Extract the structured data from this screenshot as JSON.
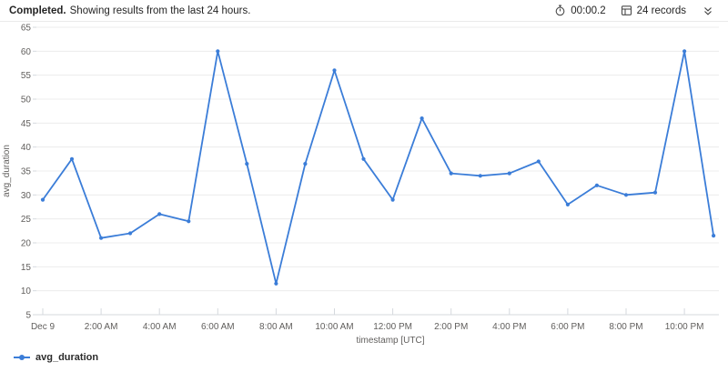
{
  "header": {
    "status": "Completed.",
    "message": "Showing results from the last 24 hours.",
    "elapsed": "00:00.2",
    "records": "24 records"
  },
  "legend": {
    "label": "avg_duration"
  },
  "colors": {
    "series_blue": "#3b7dd8",
    "grid": "#ececec",
    "axis": "#d5d9de",
    "tick_text": "#605e5c",
    "icon_gray": "#4a4a4a"
  },
  "chart_data": {
    "type": "line",
    "title": "",
    "xlabel": "timestamp [UTC]",
    "ylabel": "avg_duration",
    "ylim": [
      5,
      65
    ],
    "y_tick_labels": [
      5,
      10,
      15,
      20,
      25,
      30,
      35,
      40,
      45,
      50,
      55,
      60,
      65
    ],
    "x_tick_labels": [
      "Dec 9",
      "2:00 AM",
      "4:00 AM",
      "6:00 AM",
      "8:00 AM",
      "10:00 AM",
      "12:00 PM",
      "2:00 PM",
      "4:00 PM",
      "6:00 PM",
      "8:00 PM",
      "10:00 PM"
    ],
    "x_interval": "hourly",
    "grid": "horizontal",
    "legend_position": "bottom-left",
    "series": [
      {
        "name": "avg_duration",
        "color": "#3b7dd8",
        "values": [
          29,
          37.5,
          21,
          22,
          26,
          24.5,
          60,
          36.5,
          11.5,
          36.5,
          56,
          37.5,
          29,
          46,
          34.5,
          34,
          34.5,
          37,
          28,
          32,
          30,
          30.5,
          60,
          21.5
        ]
      }
    ]
  }
}
